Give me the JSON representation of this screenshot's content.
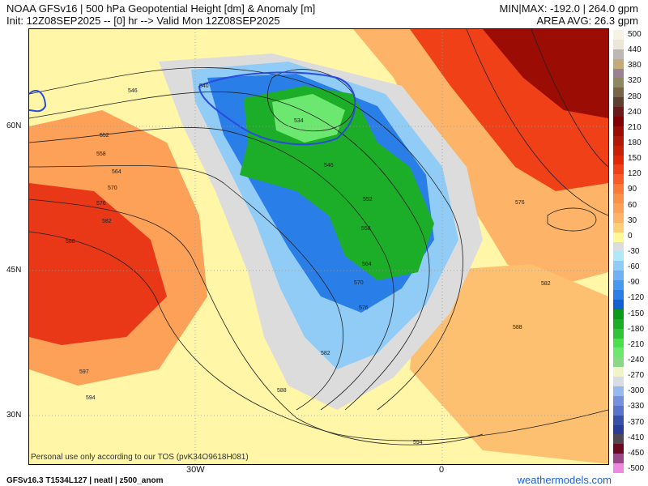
{
  "header": {
    "title": "NOAA GFSv16 | 500 hPa Geopotential Height [dm] & Anomaly [m]",
    "init": "Init: 12Z08SEP2025 -- [0] hr --> Valid Mon 12Z08SEP2025",
    "minmax": "MIN|MAX: -192.0 | 264.0 gpm",
    "area_avg": "AREA AVG: 26.3 gpm"
  },
  "map": {
    "lat_labels": [
      "60N",
      "45N",
      "30N"
    ],
    "lon_labels": [
      "30W",
      "0"
    ],
    "contour_labels": [
      "546",
      "552",
      "558",
      "564",
      "570",
      "576",
      "582",
      "588",
      "597",
      "594",
      "540",
      "534",
      "546",
      "552",
      "558",
      "564",
      "570",
      "576",
      "582",
      "588",
      "576",
      "582",
      "588",
      "594"
    ]
  },
  "colorbar": {
    "ticks": [
      "500",
      "440",
      "380",
      "320",
      "280",
      "240",
      "210",
      "180",
      "150",
      "120",
      "90",
      "60",
      "30",
      "0",
      "-30",
      "-60",
      "-90",
      "-120",
      "-150",
      "-180",
      "-210",
      "-240",
      "-270",
      "-300",
      "-330",
      "-370",
      "-410",
      "-450",
      "-500"
    ],
    "colors": [
      "#f8f2e2",
      "#ebe6d8",
      "#bdb8b6",
      "#c6a978",
      "#9a8292",
      "#8e8860",
      "#7a6448",
      "#5e4030",
      "#6a1a18",
      "#800000",
      "#9a0c04",
      "#b01808",
      "#c82008",
      "#e02808",
      "#f04018",
      "#fa5a28",
      "#fc7838",
      "#fd9048",
      "#fda058",
      "#fdb468",
      "#fdd078",
      "#fef898",
      "#dcdcdc",
      "#b0e8f8",
      "#90ccf6",
      "#70b0f4",
      "#4898ee",
      "#2a7ee8",
      "#1460d0",
      "#0c9a1a",
      "#1cae28",
      "#30c43c",
      "#4ae04c",
      "#6ce870",
      "#88d888",
      "#f0f4c8",
      "#d8dce4",
      "#98b8f0",
      "#7890dc",
      "#5a74cc",
      "#3850a8",
      "#283c98",
      "#504850",
      "#6a0a20",
      "#9a4888",
      "#ee88e0"
    ],
    "accent_blue": "#1a5fd6"
  },
  "footer": {
    "tos": "Personal use only according to our TOS (pvK34O9618H081)",
    "model_info": "GFSv16.3 T1534L127 | neatl | z500_anom",
    "brand": "weathermodels.com"
  }
}
